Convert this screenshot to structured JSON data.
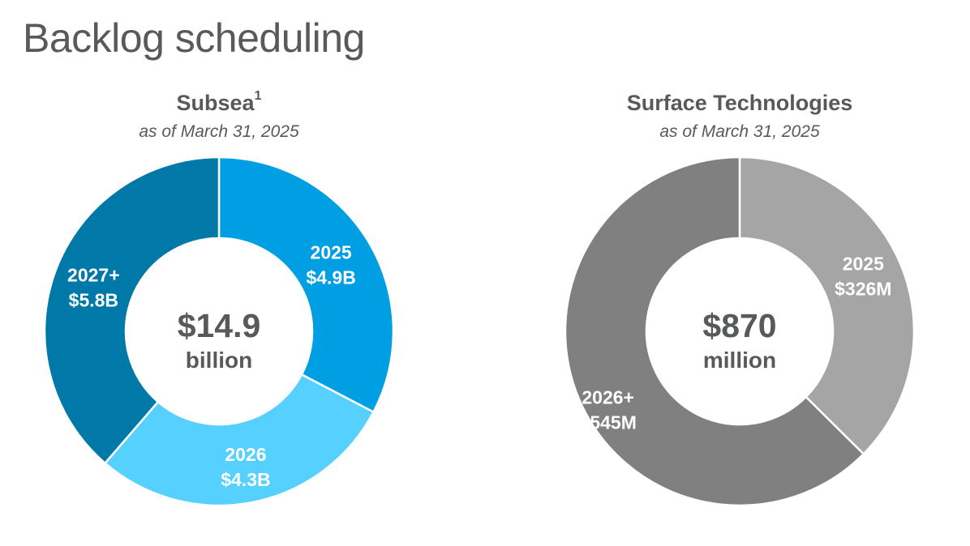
{
  "page": {
    "title": "Backlog scheduling"
  },
  "chart_data": [
    {
      "type": "pie",
      "variant": "donut",
      "title": "Subsea",
      "title_footnote": "1",
      "subtitle": "as of March 31, 2025",
      "center_value": "$14.9",
      "center_unit": "billion",
      "total": 14.9,
      "unit": "billion",
      "slices": [
        {
          "category": "2025",
          "value": 4.9,
          "value_label": "$4.9B",
          "color": "#009fe3"
        },
        {
          "category": "2026",
          "value": 4.3,
          "value_label": "$4.3B",
          "color": "#55d0ff"
        },
        {
          "category": "2027+",
          "value": 5.8,
          "value_label": "$5.8B",
          "color": "#0079a8"
        }
      ]
    },
    {
      "type": "pie",
      "variant": "donut",
      "title": "Surface Technologies",
      "subtitle": "as of March 31, 2025",
      "center_value": "$870",
      "center_unit": "million",
      "total": 870,
      "unit": "million",
      "slices": [
        {
          "category": "2025",
          "value": 326,
          "value_label": "$326M",
          "color": "#a5a5a5"
        },
        {
          "category": "2026+",
          "value": 545,
          "value_label": "$545M",
          "color": "#808080"
        }
      ]
    }
  ]
}
